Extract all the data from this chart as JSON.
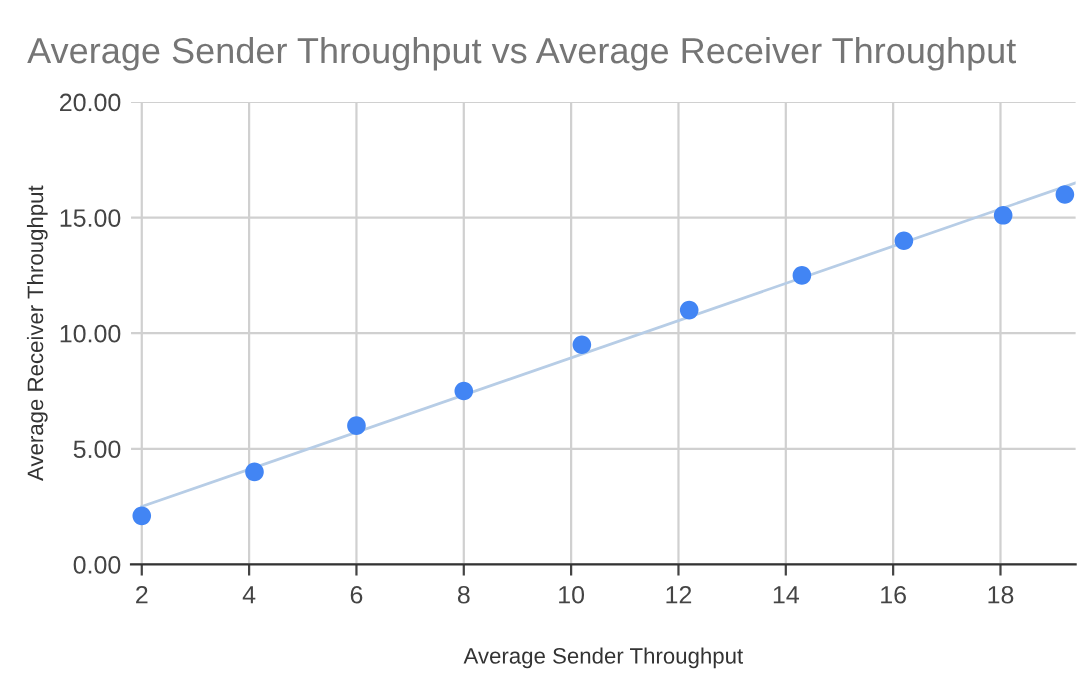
{
  "chart_data": {
    "type": "scatter",
    "title": "Average Sender Throughput vs Average Receiver Throughput",
    "xlabel": "Average Sender Throughput",
    "ylabel": "Average Receiver Throughput",
    "x": [
      2.0,
      4.1,
      6.0,
      8.0,
      10.2,
      12.2,
      14.3,
      16.2,
      18.05,
      19.2
    ],
    "series": [
      {
        "color": "#4285f4",
        "marker": "circle",
        "values": [
          2.1,
          4.0,
          6.0,
          7.5,
          9.5,
          11.0,
          12.5,
          14.0,
          15.1,
          16.0
        ]
      },
      {
        "type": "line",
        "color": "#b7cde6",
        "x": [
          2,
          19.4
        ],
        "values": [
          2.5,
          16.5
        ]
      }
    ],
    "xlim": [
      1.8,
      19.4
    ],
    "xticks": [
      2,
      4,
      6,
      8,
      10,
      12,
      14,
      16,
      18
    ],
    "ylim": [
      0,
      20
    ],
    "yticks": [
      {
        "value": 0,
        "label": "0.00"
      },
      {
        "value": 5,
        "label": "5.00"
      },
      {
        "value": 10,
        "label": "10.00"
      },
      {
        "value": 15,
        "label": "15.00"
      },
      {
        "value": 20,
        "label": "20.00"
      }
    ],
    "grid": true
  }
}
